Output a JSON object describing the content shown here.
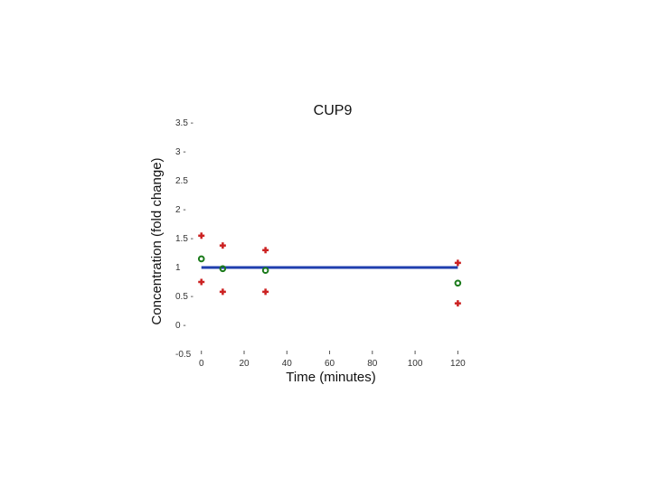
{
  "chart_data": {
    "type": "scatter",
    "title": "CUP9",
    "xlabel": "Time (minutes)",
    "ylabel": "Concentration (fold change)",
    "xlim": [
      -2,
      130
    ],
    "ylim": [
      -0.5,
      3.5
    ],
    "x_ticks": [
      0,
      20,
      40,
      60,
      80,
      100,
      120
    ],
    "x_tick_labels": [
      "0",
      "20",
      "40",
      "60",
      "80",
      "100",
      "120"
    ],
    "y_ticks": [
      3.5,
      3,
      2.5,
      2,
      1.5,
      1,
      0.5,
      0,
      -0.5
    ],
    "y_tick_labels": [
      "3.5 -",
      "3 -",
      "2.5",
      "2 -",
      "1.5 -",
      "1",
      "0.5 -",
      "0 -",
      "-0.5"
    ],
    "grid": false,
    "series": [
      {
        "marker": "cross",
        "color": "#cc2222",
        "points": [
          {
            "x": 0,
            "y": 1.55
          },
          {
            "x": 0,
            "y": 0.75
          },
          {
            "x": 10,
            "y": 1.38
          },
          {
            "x": 10,
            "y": 0.58
          },
          {
            "x": 30,
            "y": 1.3
          },
          {
            "x": 30,
            "y": 0.58
          },
          {
            "x": 120,
            "y": 1.08
          },
          {
            "x": 120,
            "y": 0.38
          }
        ]
      },
      {
        "marker": "circle",
        "color": "#1a7a1a",
        "points": [
          {
            "x": 0,
            "y": 1.15
          },
          {
            "x": 10,
            "y": 0.98
          },
          {
            "x": 30,
            "y": 0.95
          },
          {
            "x": 120,
            "y": 0.73
          }
        ]
      }
    ],
    "reference_line": {
      "y": 1.0,
      "x_start": 0,
      "x_end": 120,
      "color": "#1f3fae"
    }
  }
}
